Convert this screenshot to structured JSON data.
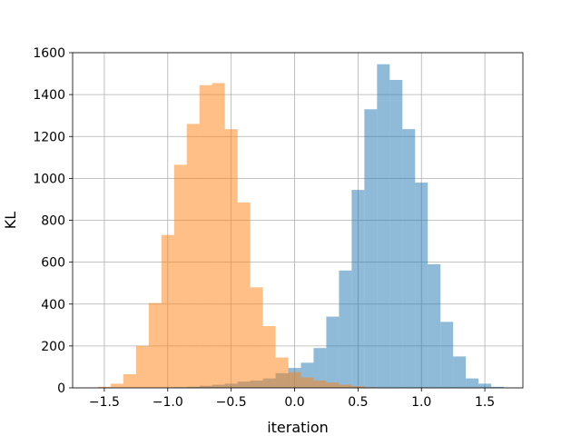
{
  "chart_data": {
    "type": "bar",
    "subtype": "overlapping-histogram",
    "title": "",
    "xlabel": "iteration",
    "ylabel": "KL",
    "xlim": [
      -1.75,
      1.8
    ],
    "ylim": [
      0,
      1600
    ],
    "grid": true,
    "bin_width": 0.1,
    "x_ticks": [
      -1.5,
      -1.0,
      -0.5,
      0.0,
      0.5,
      1.0,
      1.5
    ],
    "x_tick_labels": [
      "−1.5",
      "−1.0",
      "−0.5",
      "0.0",
      "0.5",
      "1.0",
      "1.5"
    ],
    "y_ticks": [
      0,
      200,
      400,
      600,
      800,
      1000,
      1200,
      1400,
      1600
    ],
    "y_tick_labels": [
      "0",
      "200",
      "400",
      "600",
      "800",
      "1000",
      "1200",
      "1400",
      "1600"
    ],
    "series": [
      {
        "color": "#1f77b4",
        "opacity": 0.5,
        "bin_starts": [
          -0.95,
          -0.85,
          -0.75,
          -0.65,
          -0.55,
          -0.45,
          -0.35,
          -0.25,
          -0.15,
          -0.05,
          0.05,
          0.15,
          0.25,
          0.35,
          0.45,
          0.55,
          0.65,
          0.75,
          0.85,
          0.95,
          1.05,
          1.15,
          1.25,
          1.35,
          1.45,
          1.55
        ],
        "values": [
          3,
          5,
          10,
          15,
          20,
          30,
          35,
          45,
          70,
          95,
          120,
          190,
          340,
          560,
          945,
          1330,
          1545,
          1470,
          1235,
          980,
          590,
          315,
          150,
          45,
          20,
          5
        ]
      },
      {
        "color": "#ff7f0e",
        "opacity": 0.5,
        "bin_starts": [
          -1.55,
          -1.45,
          -1.35,
          -1.25,
          -1.15,
          -1.05,
          -0.95,
          -0.85,
          -0.75,
          -0.65,
          -0.55,
          -0.45,
          -0.35,
          -0.25,
          -0.15,
          -0.05,
          0.05,
          0.15,
          0.25,
          0.35,
          0.45,
          0.55
        ],
        "values": [
          5,
          20,
          65,
          200,
          405,
          730,
          1065,
          1260,
          1445,
          1455,
          1235,
          885,
          480,
          295,
          145,
          75,
          50,
          35,
          25,
          15,
          8,
          3
        ]
      }
    ]
  }
}
